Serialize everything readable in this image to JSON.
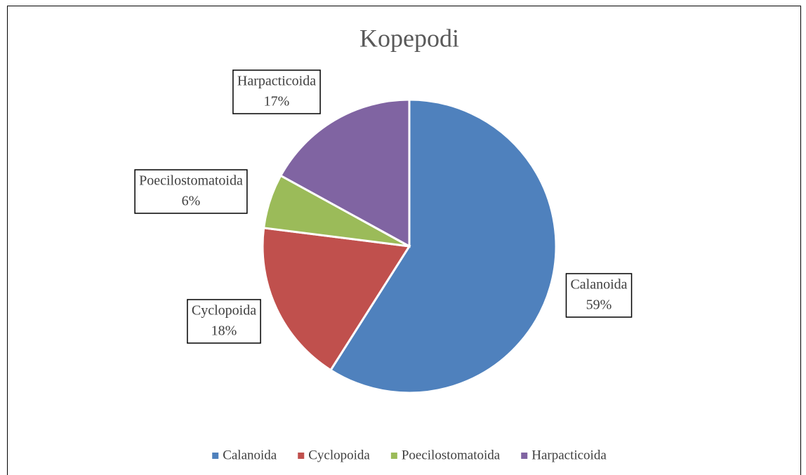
{
  "chart_data": {
    "type": "pie",
    "title": "Kopepodi",
    "categories": [
      "Calanoida",
      "Cyclopoida",
      "Poecilostomatoida",
      "Harpacticoida"
    ],
    "values": [
      59,
      18,
      6,
      17
    ],
    "value_labels": [
      "59%",
      "18%",
      "6%",
      "17%"
    ],
    "colors": [
      "#4f81bd",
      "#c0504d",
      "#9bbb59",
      "#8064a2"
    ],
    "legend": "bottom"
  }
}
